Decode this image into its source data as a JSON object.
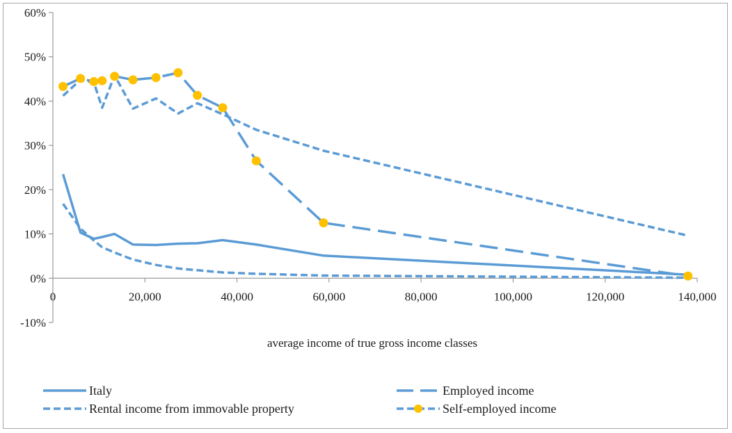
{
  "chart_data": {
    "type": "line",
    "title": "",
    "xlabel": "average income of true gross income classes",
    "ylabel": "",
    "xlim": [
      0,
      140000
    ],
    "ylim": [
      -10,
      60
    ],
    "x_ticks": [
      {
        "v": 0,
        "label": "0"
      },
      {
        "v": 20000,
        "label": "20,000"
      },
      {
        "v": 40000,
        "label": "40,000"
      },
      {
        "v": 60000,
        "label": "60,000"
      },
      {
        "v": 80000,
        "label": "80,000"
      },
      {
        "v": 100000,
        "label": "100,000"
      },
      {
        "v": 120000,
        "label": "120,000"
      },
      {
        "v": 140000,
        "label": "140,000"
      }
    ],
    "y_ticks": [
      {
        "v": -10,
        "label": "-10%"
      },
      {
        "v": 0,
        "label": "0%"
      },
      {
        "v": 10,
        "label": "10%"
      },
      {
        "v": 20,
        "label": "20%"
      },
      {
        "v": 30,
        "label": "30%"
      },
      {
        "v": 40,
        "label": "40%"
      },
      {
        "v": 50,
        "label": "50%"
      },
      {
        "v": 60,
        "label": "60%"
      }
    ],
    "color": "#5b9bd5",
    "marker_color": "#ffc000",
    "series": [
      {
        "name": "Italy",
        "style": "solid",
        "points": [
          [
            2200,
            23.5
          ],
          [
            6000,
            10.3
          ],
          [
            8900,
            8.9
          ],
          [
            10700,
            9.3
          ],
          [
            13400,
            10.0
          ],
          [
            17400,
            7.6
          ],
          [
            22400,
            7.5
          ],
          [
            27200,
            7.8
          ],
          [
            31400,
            7.9
          ],
          [
            36900,
            8.6
          ],
          [
            44200,
            7.6
          ],
          [
            58800,
            5.1
          ],
          [
            138000,
            0.8
          ]
        ]
      },
      {
        "name": "Employed income",
        "style": "long-dash",
        "points": [
          [
            2200,
            43.3
          ],
          [
            6000,
            45.1
          ],
          [
            8900,
            44.4
          ],
          [
            10700,
            44.6
          ],
          [
            13400,
            45.6
          ],
          [
            17400,
            44.8
          ],
          [
            22400,
            45.3
          ],
          [
            27200,
            46.4
          ],
          [
            31400,
            41.3
          ],
          [
            36900,
            38.5
          ],
          [
            44200,
            26.5
          ],
          [
            58800,
            12.5
          ],
          [
            138000,
            0.5
          ]
        ]
      },
      {
        "name": "Rental income from immovable property",
        "style": "short-dash",
        "points": [
          [
            2200,
            41.2
          ],
          [
            6000,
            44.8
          ],
          [
            8900,
            44.2
          ],
          [
            10700,
            38.5
          ],
          [
            13400,
            45.8
          ],
          [
            17400,
            38.3
          ],
          [
            22400,
            40.6
          ],
          [
            27200,
            37.2
          ],
          [
            31400,
            39.5
          ],
          [
            36900,
            37.0
          ],
          [
            44200,
            33.5
          ],
          [
            58800,
            28.8
          ],
          [
            138000,
            9.6
          ]
        ]
      },
      {
        "name": "Self-employed income",
        "style": "dash-marker",
        "points": [
          [
            2200,
            16.8
          ],
          [
            6000,
            11.2
          ],
          [
            8900,
            8.5
          ],
          [
            10700,
            7.0
          ],
          [
            13400,
            5.8
          ],
          [
            17400,
            4.2
          ],
          [
            22400,
            3.0
          ],
          [
            27200,
            2.2
          ],
          [
            31400,
            1.8
          ],
          [
            36900,
            1.3
          ],
          [
            44200,
            1.0
          ],
          [
            58800,
            0.6
          ],
          [
            138000,
            0.1
          ]
        ],
        "markers": [
          [
            2200,
            43.3
          ],
          [
            6000,
            45.1
          ],
          [
            8900,
            44.4
          ],
          [
            10700,
            44.6
          ],
          [
            13400,
            45.6
          ],
          [
            17400,
            44.8
          ],
          [
            22400,
            45.3
          ],
          [
            27200,
            46.4
          ],
          [
            31400,
            41.3
          ],
          [
            36900,
            38.5
          ],
          [
            44200,
            26.5
          ],
          [
            58800,
            12.5
          ],
          [
            138000,
            0.5
          ]
        ]
      }
    ],
    "legend": {
      "placement": "bottom",
      "items": [
        {
          "label": "Italy",
          "style": "solid"
        },
        {
          "label": "Employed income",
          "style": "long-dash"
        },
        {
          "label": "Rental income from immovable property",
          "style": "short-dash"
        },
        {
          "label": "Self-employed income",
          "style": "dash-marker"
        }
      ]
    }
  }
}
